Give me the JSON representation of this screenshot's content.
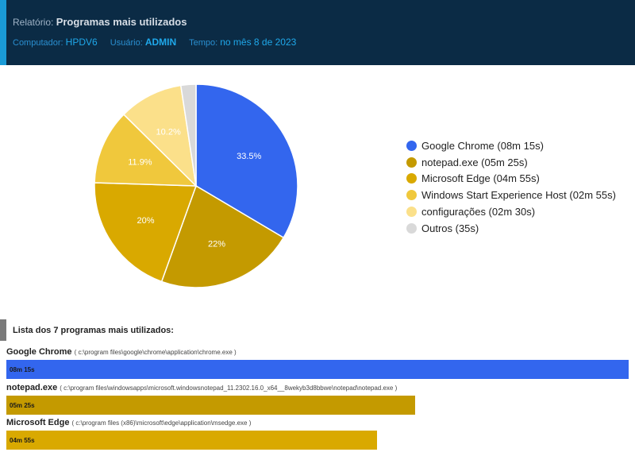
{
  "header": {
    "report_label": "Relatório:",
    "report_title": "Programas mais utilizados",
    "computer_label": "Computador:",
    "computer_value": "HPDV6",
    "user_label": "Usuário:",
    "user_value": "ADMIN",
    "time_label": "Tempo:",
    "time_value": "no mês 8 de 2023"
  },
  "chart_data": {
    "type": "pie",
    "title": "",
    "legend_position": "right",
    "slices": [
      {
        "label": "Google Chrome (08m 15s)",
        "value": 33.5,
        "value_label": "33.5%",
        "color": "#3366ee"
      },
      {
        "label": "notepad.exe (05m 25s)",
        "value": 22,
        "value_label": "22%",
        "color": "#c49a00"
      },
      {
        "label": "Microsoft Edge (04m 55s)",
        "value": 20,
        "value_label": "20%",
        "color": "#d9a900"
      },
      {
        "label": "Windows Start Experience Host (02m 55s)",
        "value": 11.9,
        "value_label": "11.9%",
        "color": "#f0c83c"
      },
      {
        "label": "configurações (02m 30s)",
        "value": 10.2,
        "value_label": "10.2%",
        "color": "#fbe08a"
      },
      {
        "label": "Outros (35s)",
        "value": 2.4,
        "value_label": "",
        "color": "#d9d9d9"
      }
    ]
  },
  "list": {
    "heading": "Lista dos 7 programas mais utilizados:",
    "items": [
      {
        "name": "Google Chrome",
        "path": "( c:\\program files\\google\\chrome\\application\\chrome.exe )",
        "time": "08m 15s",
        "fraction": 1.0,
        "color": "#3366ee"
      },
      {
        "name": "notepad.exe",
        "path": "( c:\\program files\\windowsapps\\microsoft.windowsnotepad_11.2302.16.0_x64__8wekyb3d8bbwe\\notepad\\notepad.exe )",
        "time": "05m 25s",
        "fraction": 0.657,
        "color": "#c49a00"
      },
      {
        "name": "Microsoft Edge",
        "path": "( c:\\program files (x86)\\microsoft\\edge\\application\\msedge.exe )",
        "time": "04m 55s",
        "fraction": 0.596,
        "color": "#d9a900"
      }
    ]
  }
}
